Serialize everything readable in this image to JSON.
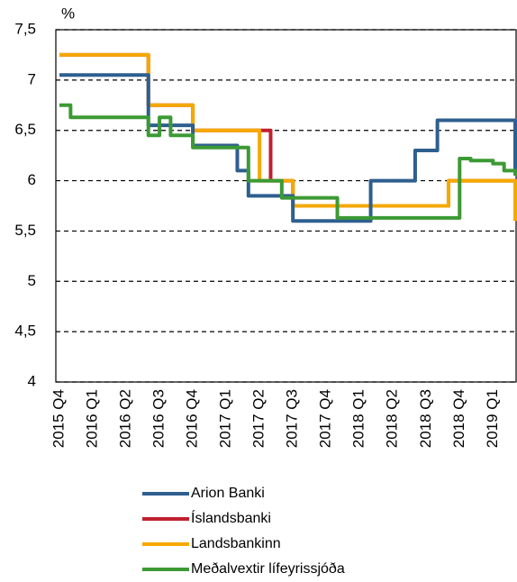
{
  "chart_data": {
    "type": "line",
    "step": true,
    "y_label": "%",
    "categories": [
      "2015 Q4",
      null,
      null,
      "2016 Q1",
      null,
      null,
      "2016 Q2",
      null,
      null,
      "2016 Q3",
      null,
      null,
      "2016 Q4",
      null,
      null,
      "2017 Q1",
      null,
      null,
      "2017 Q2",
      null,
      null,
      "2017 Q3",
      null,
      null,
      "2017 Q4",
      null,
      null,
      "2018 Q1",
      null,
      null,
      "2018 Q2",
      null,
      null,
      "2018 Q3",
      null,
      null,
      "2018 Q4",
      null,
      null,
      "2019 Q1",
      null,
      null
    ],
    "series": [
      {
        "name": "Arion Banki",
        "color": "#2e5f8f",
        "values": [
          7.05,
          7.05,
          7.05,
          7.05,
          7.05,
          7.05,
          7.05,
          7.05,
          6.55,
          6.55,
          6.55,
          6.55,
          6.35,
          6.35,
          6.35,
          6.35,
          6.1,
          5.85,
          5.85,
          5.85,
          5.85,
          5.6,
          5.6,
          5.6,
          5.6,
          5.6,
          5.6,
          5.6,
          6.0,
          6.0,
          6.0,
          6.0,
          6.3,
          6.3,
          6.6,
          6.6,
          6.6,
          6.6,
          6.6,
          6.6,
          6.6,
          6.05
        ]
      },
      {
        "name": "Íslandsbanki",
        "color": "#c0202e",
        "values": [
          7.25,
          7.25,
          7.25,
          7.25,
          7.25,
          7.25,
          7.25,
          7.25,
          6.75,
          6.75,
          6.75,
          6.75,
          6.5,
          6.5,
          6.5,
          6.5,
          6.5,
          6.5,
          6.5,
          6.0,
          6.0,
          5.75,
          5.75,
          5.75,
          5.75,
          5.75,
          5.75,
          5.75,
          5.75,
          5.75,
          5.75,
          5.75,
          5.75,
          5.75,
          5.75,
          6.0,
          6.0,
          6.0,
          6.0,
          6.0,
          6.0,
          5.75
        ]
      },
      {
        "name": "Landsbankinn",
        "color": "#f5a800",
        "values": [
          7.25,
          7.25,
          7.25,
          7.25,
          7.25,
          7.25,
          7.25,
          7.25,
          6.75,
          6.75,
          6.75,
          6.75,
          6.5,
          6.5,
          6.5,
          6.5,
          6.5,
          6.5,
          6.0,
          6.0,
          6.0,
          5.75,
          5.75,
          5.75,
          5.75,
          5.75,
          5.75,
          5.75,
          5.75,
          5.75,
          5.75,
          5.75,
          5.75,
          5.75,
          5.75,
          6.0,
          6.0,
          6.0,
          6.0,
          6.0,
          6.0,
          5.6
        ]
      },
      {
        "name": "Meðalvextir lífeyrissjóða",
        "color": "#3c9a34",
        "values": [
          6.75,
          6.63,
          6.63,
          6.63,
          6.63,
          6.63,
          6.63,
          6.63,
          6.45,
          6.63,
          6.45,
          6.45,
          6.33,
          6.33,
          6.33,
          6.33,
          6.33,
          6.0,
          6.0,
          6.0,
          5.83,
          5.83,
          5.83,
          5.83,
          5.83,
          5.63,
          5.63,
          5.63,
          5.63,
          5.63,
          5.63,
          5.63,
          5.63,
          5.63,
          5.63,
          5.63,
          6.22,
          6.2,
          6.2,
          6.17,
          6.1,
          6.05
        ]
      }
    ],
    "ylim": [
      4,
      7.5
    ],
    "yticks": [
      4,
      {
        "value": 4.5,
        "label": "4,5"
      },
      5,
      {
        "value": 5.5,
        "label": "5,5"
      },
      6,
      {
        "value": 6.5,
        "label": "6,5"
      },
      7,
      {
        "value": 7.5,
        "label": "7,5"
      }
    ],
    "grid": true
  }
}
